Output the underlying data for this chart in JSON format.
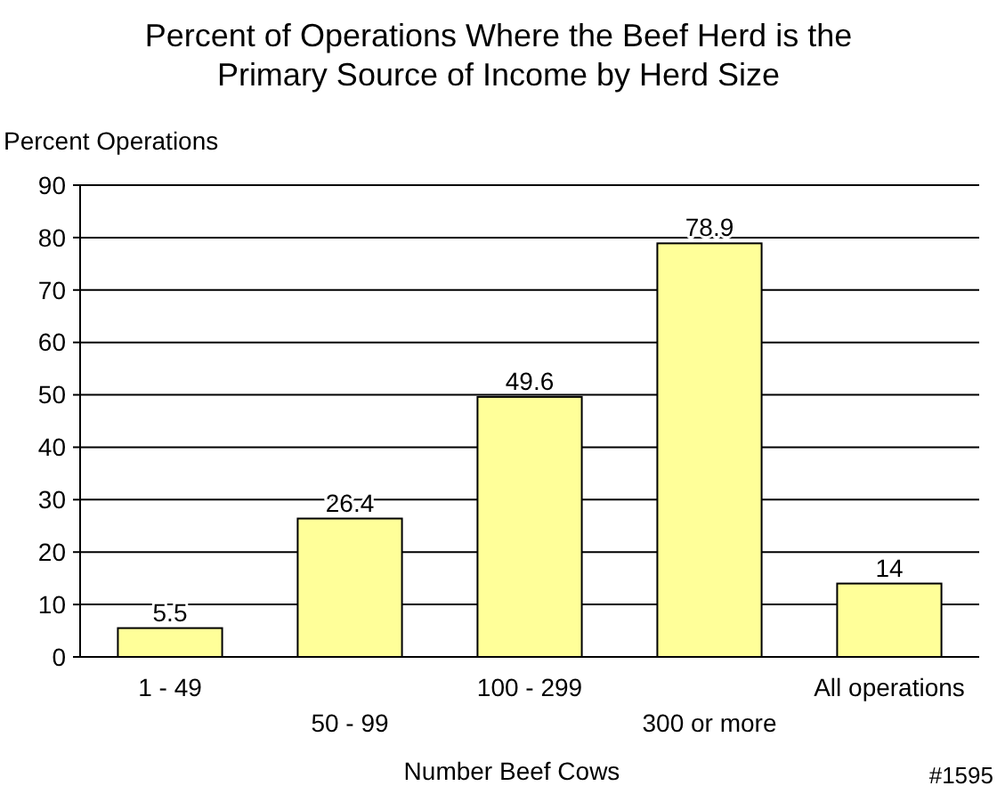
{
  "chart_data": {
    "type": "bar",
    "title": "Percent of Operations Where the Beef Herd is the\nPrimary Source of Income by Herd Size",
    "ylabel": "Percent Operations",
    "xlabel": "Number Beef Cows",
    "annotations": [
      "#1595"
    ],
    "categories": [
      "1 - 49",
      "50 - 99",
      "100 - 299",
      "300 or more",
      "All operations"
    ],
    "values": [
      5.5,
      26.4,
      49.6,
      78.9,
      14
    ],
    "color": "#ffff99",
    "ylim": [
      0,
      90
    ],
    "yticks": [
      0,
      10,
      20,
      30,
      40,
      50,
      60,
      70,
      80,
      90
    ],
    "grid": "y",
    "data_labels": true
  }
}
